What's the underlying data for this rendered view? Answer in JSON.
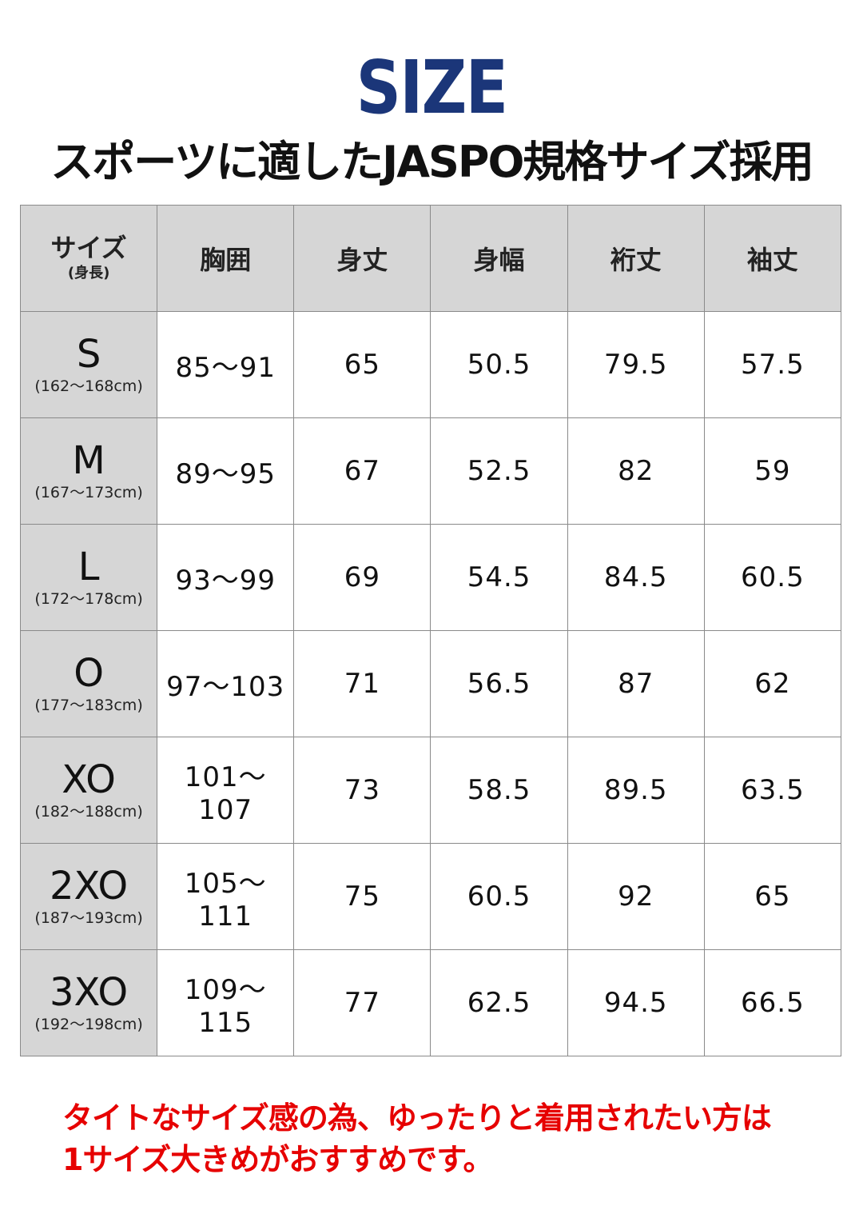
{
  "header": {
    "title": "SIZE",
    "subtitle": "スポーツに適したJASPO規格サイズ採用",
    "title_color": "#1b3679"
  },
  "table": {
    "columns": [
      {
        "label": "サイズ",
        "sub": "(身長)"
      },
      {
        "label": "胸囲"
      },
      {
        "label": "身丈"
      },
      {
        "label": "身幅"
      },
      {
        "label": "裄丈"
      },
      {
        "label": "袖丈"
      }
    ],
    "rows": [
      {
        "size": "S",
        "height": "(162〜168cm)",
        "values": [
          "85〜91",
          "65",
          "50.5",
          "79.5",
          "57.5"
        ]
      },
      {
        "size": "M",
        "height": "(167〜173cm)",
        "values": [
          "89〜95",
          "67",
          "52.5",
          "82",
          "59"
        ]
      },
      {
        "size": "L",
        "height": "(172〜178cm)",
        "values": [
          "93〜99",
          "69",
          "54.5",
          "84.5",
          "60.5"
        ]
      },
      {
        "size": "O",
        "height": "(177〜183cm)",
        "values": [
          "97〜103",
          "71",
          "56.5",
          "87",
          "62"
        ]
      },
      {
        "size": "XO",
        "height": "(182〜188cm)",
        "values": [
          "101〜107",
          "73",
          "58.5",
          "89.5",
          "63.5"
        ]
      },
      {
        "size": "2XO",
        "height": "(187〜193cm)",
        "values": [
          "105〜111",
          "75",
          "60.5",
          "92",
          "65"
        ]
      },
      {
        "size": "3XO",
        "height": "(192〜198cm)",
        "values": [
          "109〜115",
          "77",
          "62.5",
          "94.5",
          "66.5"
        ]
      }
    ]
  },
  "note": {
    "line1": "タイトなサイズ感の為、ゆったりと着用されたい方は",
    "line2": "1サイズ大きめがおすすめです。",
    "color": "#e60000"
  }
}
